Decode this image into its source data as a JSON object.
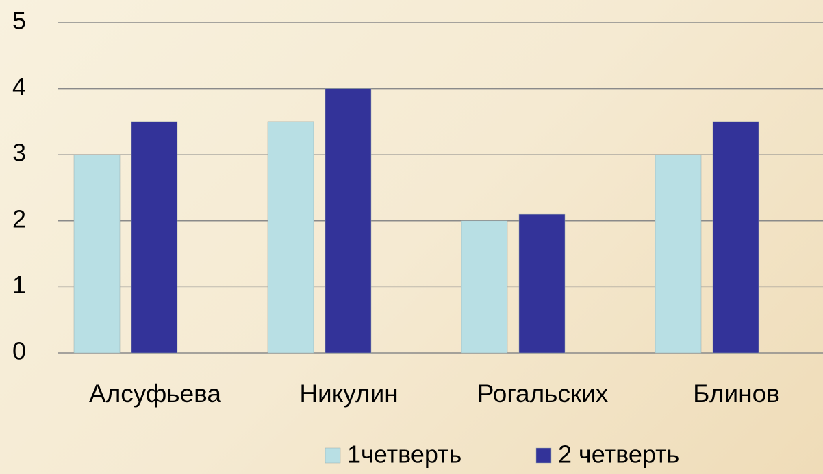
{
  "chart_data": {
    "type": "bar",
    "categories": [
      "Алсуфьева",
      "Никулин",
      "Рогальских",
      "Блинов"
    ],
    "series": [
      {
        "name": "1четверть",
        "color": "#b8dfe4",
        "values": [
          3,
          3.5,
          2,
          3
        ]
      },
      {
        "name": "2 четверть",
        "color": "#333399",
        "values": [
          3.5,
          4,
          2.1,
          3.5
        ]
      }
    ],
    "ylim": [
      0,
      5
    ],
    "yticks": [
      0,
      1,
      2,
      3,
      4,
      5
    ],
    "grid": true,
    "legend": "bottom"
  }
}
